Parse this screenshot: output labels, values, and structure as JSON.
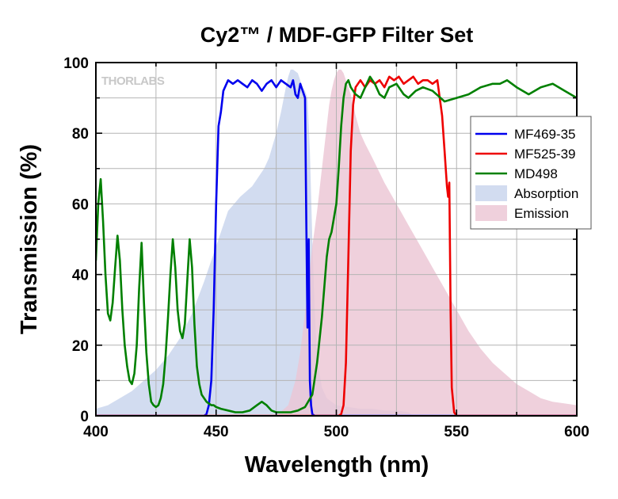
{
  "chart_data": {
    "type": "line",
    "title": "Cy2™ / MDF-GFP Filter Set",
    "xlabel": "Wavelength (nm)",
    "ylabel": "Transmission (%)",
    "xlim": [
      400,
      600
    ],
    "ylim": [
      0,
      100
    ],
    "xticks": [
      400,
      450,
      500,
      550,
      600
    ],
    "yticks": [
      0,
      20,
      40,
      60,
      80,
      100
    ],
    "grid": true,
    "legend_position": "right",
    "logo_text": "THORLABS",
    "series": [
      {
        "name": "MF469-35",
        "kind": "line",
        "color": "#0000ee",
        "x": [
          400,
          445,
          446,
          447,
          448,
          449,
          450,
          451,
          452,
          453,
          455,
          457,
          459,
          461,
          463,
          465,
          467,
          469,
          471,
          473,
          475,
          477,
          479,
          481,
          482,
          483,
          484,
          485,
          486,
          487,
          487.5,
          488,
          488.5,
          489,
          489.5,
          490,
          491,
          600
        ],
        "y": [
          0,
          0,
          0.5,
          3,
          10,
          30,
          60,
          82,
          86,
          92,
          95,
          94,
          95,
          94,
          93,
          95,
          94,
          92,
          94,
          95,
          93,
          95,
          94,
          93,
          95,
          91,
          90,
          94,
          92,
          90,
          55,
          25,
          50,
          10,
          3,
          0.5,
          0,
          0
        ]
      },
      {
        "name": "MF525-39",
        "kind": "line",
        "color": "#ee0000",
        "x": [
          400,
          501,
          502,
          503,
          504,
          505,
          506,
          507,
          508,
          510,
          512,
          514,
          516,
          518,
          520,
          522,
          524,
          526,
          528,
          530,
          532,
          534,
          536,
          538,
          540,
          542,
          543,
          544,
          545,
          546,
          546.5,
          547,
          547.5,
          548,
          549,
          550,
          600
        ],
        "y": [
          0,
          0,
          0.5,
          3,
          15,
          45,
          75,
          88,
          93,
          95,
          93,
          95,
          94,
          95,
          93,
          96,
          95,
          96,
          94,
          95,
          96,
          94,
          95,
          95,
          94,
          95,
          90,
          85,
          75,
          65,
          62,
          66,
          30,
          8,
          1,
          0,
          0
        ]
      },
      {
        "name": "MD498",
        "kind": "line",
        "color": "#008000",
        "x": [
          400,
          401,
          402,
          403,
          404,
          405,
          406,
          407,
          408,
          409,
          410,
          411,
          412,
          413,
          414,
          415,
          416,
          417,
          418,
          419,
          420,
          421,
          422,
          423,
          424,
          425,
          426,
          427,
          428,
          429,
          430,
          431,
          432,
          433,
          434,
          435,
          436,
          437,
          438,
          439,
          440,
          441,
          442,
          443,
          444,
          445,
          446,
          447,
          448,
          449,
          450,
          452,
          455,
          458,
          461,
          464,
          467,
          469,
          471,
          473,
          475,
          478,
          481,
          484,
          487,
          490,
          492,
          494,
          496,
          497,
          498,
          500,
          501,
          502,
          503,
          504,
          505,
          506,
          508,
          510,
          512,
          514,
          516,
          518,
          520,
          522,
          525,
          528,
          530,
          533,
          536,
          540,
          545,
          550,
          555,
          560,
          565,
          568,
          571,
          575,
          580,
          585,
          590,
          595,
          600
        ],
        "y": [
          44,
          60,
          67,
          55,
          40,
          29,
          27,
          32,
          42,
          51,
          44,
          30,
          20,
          14,
          10,
          9,
          12,
          20,
          36,
          49,
          32,
          18,
          9,
          4,
          3,
          2.5,
          3,
          5,
          9,
          17,
          28,
          40,
          50,
          42,
          30,
          24,
          22,
          26,
          38,
          50,
          42,
          26,
          14,
          9,
          6,
          5,
          4,
          3.5,
          3,
          3,
          2.5,
          2,
          1.5,
          1,
          1,
          1.5,
          3,
          4,
          3,
          1.5,
          1,
          1,
          1,
          1.5,
          2.5,
          6,
          15,
          28,
          45,
          50,
          52,
          60,
          70,
          82,
          90,
          94,
          95,
          93,
          91,
          90,
          93,
          96,
          94,
          91,
          90,
          93,
          94,
          91,
          90,
          92,
          93,
          92,
          89,
          90,
          91,
          93,
          94,
          94,
          95,
          93,
          91,
          93,
          94,
          92,
          90
        ]
      },
      {
        "name": "Absorption",
        "kind": "area",
        "color": "#c8d4ed",
        "x": [
          400,
          405,
          410,
          415,
          420,
          425,
          430,
          435,
          440,
          445,
          450,
          455,
          460,
          465,
          470,
          472,
          475,
          477,
          479,
          480,
          481,
          482,
          484,
          486,
          487,
          488,
          489,
          490,
          491,
          492,
          494,
          496,
          500,
          505,
          510,
          515,
          520,
          525,
          530,
          532
        ],
        "y": [
          2,
          3,
          5,
          7,
          10,
          13,
          17,
          22,
          29,
          38,
          48,
          58,
          62,
          65,
          70,
          73,
          80,
          86,
          93,
          96,
          98,
          98,
          97,
          93,
          92,
          90,
          75,
          50,
          30,
          16,
          8,
          5,
          3,
          2.5,
          2,
          2,
          1.5,
          1.5,
          1,
          0
        ]
      },
      {
        "name": "Emission",
        "kind": "area",
        "color": "#ecc6d4",
        "x": [
          475,
          480,
          483,
          485,
          488,
          490,
          492,
          494,
          496,
          497,
          498,
          499,
          500,
          501,
          502,
          503,
          504,
          506,
          508,
          510,
          512,
          515,
          520,
          525,
          530,
          535,
          540,
          545,
          550,
          555,
          560,
          565,
          570,
          575,
          580,
          585,
          590,
          595,
          600
        ],
        "y": [
          0,
          3,
          10,
          18,
          35,
          48,
          58,
          70,
          82,
          88,
          92,
          95,
          97,
          98,
          98,
          97,
          95,
          91,
          85,
          80,
          77,
          73,
          66,
          60,
          54,
          48,
          42,
          36,
          30,
          24,
          19,
          15,
          12,
          9,
          7,
          5,
          4,
          3.5,
          3
        ]
      }
    ]
  }
}
